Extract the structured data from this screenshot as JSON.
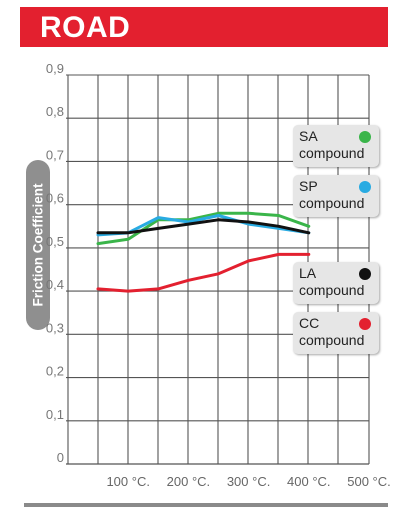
{
  "header": {
    "title": "ROAD",
    "banner_color": "#e3202f"
  },
  "chart_data": {
    "type": "line",
    "title": "ROAD",
    "ylabel": "Friction Coefficient",
    "xlabel": "",
    "x_tick_labels": [
      "100 °C.",
      "200 °C.",
      "300 °C.",
      "400 °C.",
      "500 °C."
    ],
    "x_tick_values": [
      100,
      200,
      300,
      400,
      500
    ],
    "xlim": [
      0,
      500
    ],
    "y_tick_labels": [
      "0",
      "0,1",
      "0,2",
      "0,3",
      "0,4",
      "0,5",
      "0,6",
      "0,7",
      "0,8",
      "0,9"
    ],
    "ylim": [
      0,
      0.9
    ],
    "grid": true,
    "legend_placement": "right",
    "series": [
      {
        "name": "SA compound",
        "legend": [
          "SA",
          "compound"
        ],
        "color": "#3ab54a",
        "x": [
          0,
          100,
          150,
          200,
          250,
          300,
          350,
          400
        ],
        "y": [
          0.51,
          0.52,
          0.565,
          0.565,
          0.58,
          0.58,
          0.575,
          0.55
        ]
      },
      {
        "name": "SP compound",
        "legend": [
          "SP",
          "compound"
        ],
        "color": "#29abe2",
        "x": [
          0,
          100,
          150,
          200,
          250,
          300,
          350,
          400
        ],
        "y": [
          0.53,
          0.535,
          0.57,
          0.56,
          0.575,
          0.555,
          0.545,
          0.535
        ]
      },
      {
        "name": "LA compound",
        "legend": [
          "LA",
          "compound"
        ],
        "color": "#111111",
        "x": [
          0,
          100,
          150,
          200,
          250,
          300,
          350,
          400
        ],
        "y": [
          0.535,
          0.535,
          0.545,
          0.555,
          0.565,
          0.56,
          0.55,
          0.535
        ]
      },
      {
        "name": "CC compound",
        "legend": [
          "CC",
          "compound"
        ],
        "color": "#e3202f",
        "x": [
          0,
          100,
          150,
          200,
          250,
          300,
          350,
          400
        ],
        "y": [
          0.405,
          0.4,
          0.405,
          0.425,
          0.44,
          0.47,
          0.485,
          0.485
        ]
      }
    ]
  }
}
